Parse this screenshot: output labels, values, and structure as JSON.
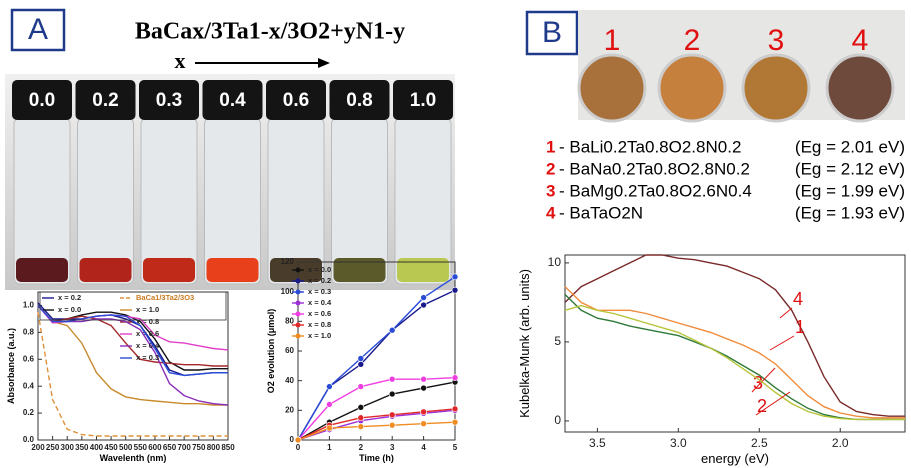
{
  "panel_a": {
    "label": "A",
    "formula": "BaCax/3Ta1-x/3O2+yN1-y",
    "x_arrow_label": "x",
    "vial_labels": [
      "0.0",
      "0.2",
      "0.3",
      "0.4",
      "0.6",
      "0.8",
      "1.0"
    ]
  },
  "panel_b": {
    "label": "B",
    "pellet_numbers": [
      "1",
      "2",
      "3",
      "4"
    ],
    "samples": [
      {
        "number": "1",
        "formula": "- BaLi0.2Ta0.8O2.8N0.2",
        "bandgap": "(Eg = 2.01 eV)"
      },
      {
        "number": "2",
        "formula": "- BaNa0.2Ta0.8O2.8N0.2",
        "bandgap": "(Eg = 2.12 eV)"
      },
      {
        "number": "3",
        "formula": "- BaMg0.2Ta0.8O2.6N0.4",
        "bandgap": "(Eg = 1.99 eV)"
      },
      {
        "number": "4",
        "formula": "- BaTaO2N",
        "bandgap": "(Eg = 1.93 eV)"
      }
    ]
  },
  "chart_data": [
    {
      "type": "line",
      "x_label": "Wavelenth (nm)",
      "y_label": "Absorbance (a.u.)",
      "x": [
        200,
        250,
        300,
        350,
        400,
        450,
        500,
        550,
        600,
        650,
        700,
        750,
        800,
        850
      ],
      "xlim": [
        200,
        850
      ],
      "ylim": [
        0,
        1.1
      ],
      "xticks": [
        200,
        250,
        300,
        350,
        400,
        450,
        500,
        550,
        600,
        650,
        700,
        750,
        800,
        850
      ],
      "yticks": [
        {
          "value": 0,
          "label": "0.0"
        },
        0.2,
        0.4,
        0.6,
        0.8,
        {
          "value": 1,
          "label": "1.0"
        }
      ],
      "series": [
        {
          "name": "x = 0.2",
          "color": "#1a1a8c",
          "values": [
            1.02,
            0.9,
            0.9,
            0.9,
            0.92,
            0.93,
            0.9,
            0.85,
            0.7,
            0.52,
            0.48,
            0.49,
            0.5,
            0.5
          ]
        },
        {
          "name": "x = 0.0",
          "color": "#111111",
          "values": [
            1.0,
            0.88,
            0.9,
            0.93,
            0.95,
            0.95,
            0.93,
            0.88,
            0.75,
            0.58,
            0.52,
            0.52,
            0.53,
            0.53
          ]
        },
        {
          "name": "BaCa1/3Ta2/3O3",
          "color": "#e0913a",
          "dashed": true,
          "values": [
            0.95,
            0.3,
            0.08,
            0.04,
            0.03,
            0.03,
            0.03,
            0.03,
            0.03,
            0.03,
            0.03,
            0.03,
            0.03,
            0.03
          ]
        },
        {
          "name": "x = 1.0",
          "color": "#c88a2c",
          "values": [
            1.0,
            0.88,
            0.85,
            0.72,
            0.5,
            0.38,
            0.32,
            0.3,
            0.29,
            0.28,
            0.27,
            0.27,
            0.26,
            0.26
          ]
        },
        {
          "name": "x = 0.8",
          "color": "#a3282a",
          "values": [
            1.0,
            0.88,
            0.9,
            0.92,
            0.9,
            0.85,
            0.72,
            0.6,
            0.58,
            0.57,
            0.56,
            0.56,
            0.55,
            0.55
          ]
        },
        {
          "name": "x = 0.6",
          "color": "#e040c8",
          "values": [
            1.0,
            0.87,
            0.88,
            0.9,
            0.92,
            0.93,
            0.92,
            0.9,
            0.78,
            0.73,
            0.72,
            0.7,
            0.68,
            0.67
          ]
        },
        {
          "name": "x = 0.4",
          "color": "#8a2fb8",
          "values": [
            1.0,
            0.88,
            0.88,
            0.88,
            0.9,
            0.9,
            0.88,
            0.82,
            0.65,
            0.42,
            0.33,
            0.29,
            0.27,
            0.26
          ]
        },
        {
          "name": "x = 0.3",
          "color": "#2a4bd6",
          "values": [
            1.0,
            0.88,
            0.88,
            0.9,
            0.92,
            0.93,
            0.92,
            0.85,
            0.68,
            0.5,
            0.48,
            0.49,
            0.5,
            0.5
          ]
        }
      ]
    },
    {
      "type": "line",
      "markers": true,
      "x_label": "Time (h)",
      "y_label": "O2 evolution (μmol)",
      "x": [
        0,
        1,
        2,
        3,
        4,
        5
      ],
      "xlim": [
        0,
        5
      ],
      "ylim": [
        0,
        120
      ],
      "xticks": [
        0,
        1,
        2,
        3,
        4,
        5
      ],
      "yticks": [
        0,
        20,
        40,
        60,
        80,
        100,
        120
      ],
      "series": [
        {
          "name": "x = 0.0",
          "color": "#111111",
          "values": [
            0,
            12,
            22,
            31,
            35,
            39
          ]
        },
        {
          "name": "x = 0.2",
          "color": "#1a1a8c",
          "values": [
            0,
            36,
            51,
            74,
            91,
            101
          ]
        },
        {
          "name": "x = 0.3",
          "color": "#2a4bd6",
          "values": [
            0,
            36,
            55,
            74,
            96,
            110
          ]
        },
        {
          "name": "x = 0.4",
          "color": "#9b30d9",
          "values": [
            0,
            7,
            13,
            16,
            18,
            20
          ]
        },
        {
          "name": "x = 0.6",
          "color": "#f03ce0",
          "values": [
            0,
            24,
            36,
            41,
            41,
            42
          ]
        },
        {
          "name": "x = 0.8",
          "color": "#e0282a",
          "values": [
            0,
            10,
            15,
            17,
            19,
            21
          ]
        },
        {
          "name": "x = 1.0",
          "color": "#f08c20",
          "values": [
            0,
            8,
            9,
            10,
            11,
            12
          ]
        }
      ]
    },
    {
      "type": "line",
      "x_label": "energy (eV)",
      "y_label": "Kubelka-Munk (arb. units)",
      "x": [
        3.7,
        3.6,
        3.5,
        3.4,
        3.3,
        3.2,
        3.1,
        3.0,
        2.9,
        2.8,
        2.7,
        2.6,
        2.5,
        2.4,
        2.3,
        2.2,
        2.1,
        2.0,
        1.9,
        1.8,
        1.7,
        1.6
      ],
      "xlim": [
        3.7,
        1.6
      ],
      "ylim": [
        -0.7,
        10.5
      ],
      "xticks": [
        3.5,
        {
          "value": 3,
          "label": "3.0"
        },
        2.5,
        {
          "value": 2,
          "label": "2.0"
        }
      ],
      "yticks": [
        0,
        5,
        10
      ],
      "series": [
        {
          "label": "4",
          "color": "#7a2a2a",
          "values": [
            7.5,
            8.5,
            9,
            9.5,
            10,
            10.5,
            10.5,
            10.3,
            10.2,
            10,
            9.8,
            9.4,
            9,
            8.3,
            7,
            5,
            2.8,
            1.2,
            0.6,
            0.4,
            0.3,
            0.3
          ]
        },
        {
          "label": "1",
          "color": "#f08c3c",
          "values": [
            8.5,
            7.5,
            7,
            7,
            7,
            6.8,
            6.5,
            6.2,
            5.9,
            5.6,
            5.2,
            4.8,
            4.3,
            3.6,
            2.6,
            1.6,
            0.9,
            0.5,
            0.3,
            0.2,
            0.2,
            0.2
          ]
        },
        {
          "label": "3",
          "color": "#2f7a3a",
          "values": [
            8,
            7,
            6.5,
            6.3,
            6,
            5.8,
            5.6,
            5.4,
            5.0,
            4.6,
            4.1,
            3.5,
            2.9,
            2.1,
            1.4,
            0.8,
            0.4,
            0.2,
            0.1,
            0.1,
            0.1,
            0.1
          ]
        },
        {
          "label": "2",
          "color": "#b8c43a",
          "values": [
            7,
            7.3,
            7,
            6.8,
            6.5,
            6.2,
            5.9,
            5.6,
            5.1,
            4.6,
            4.0,
            3.3,
            2.6,
            1.8,
            1.1,
            0.6,
            0.3,
            0.15,
            0.1,
            0.1,
            0.1,
            0.1
          ]
        }
      ]
    }
  ]
}
